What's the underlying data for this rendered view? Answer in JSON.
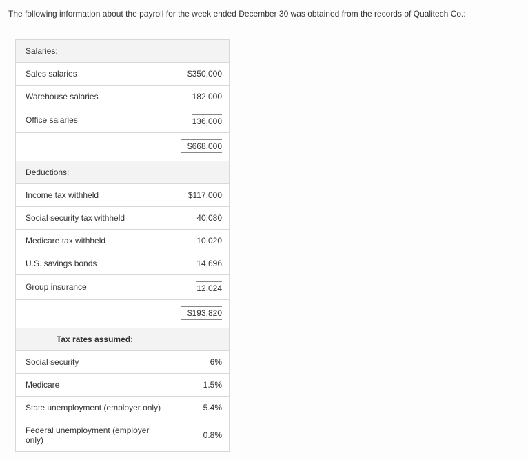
{
  "intro": "The following information about the payroll for the week ended December 30 was obtained from the records of Qualitech Co.:",
  "salaries": {
    "header": "Salaries:",
    "rows": [
      {
        "label": "Sales salaries",
        "value": "$350,000"
      },
      {
        "label": "Warehouse salaries",
        "value": "182,000"
      },
      {
        "label": "Office salaries",
        "value": "136,000"
      }
    ],
    "total": "$668,000"
  },
  "deductions": {
    "header": "Deductions:",
    "rows": [
      {
        "label": "Income tax withheld",
        "value": "$117,000"
      },
      {
        "label": "Social security tax withheld",
        "value": "40,080"
      },
      {
        "label": "Medicare tax withheld",
        "value": "10,020"
      },
      {
        "label": "U.S. savings bonds",
        "value": "14,696"
      },
      {
        "label": "Group insurance",
        "value": "12,024"
      }
    ],
    "total": "$193,820"
  },
  "taxrates": {
    "header": "Tax rates assumed:",
    "rows": [
      {
        "label": "Social security",
        "value": "6%"
      },
      {
        "label": "Medicare",
        "value": "1.5%"
      },
      {
        "label": "State unemployment (employer only)",
        "value": "5.4%"
      },
      {
        "label": "Federal unemployment (employer only)",
        "value": "0.8%"
      }
    ]
  }
}
